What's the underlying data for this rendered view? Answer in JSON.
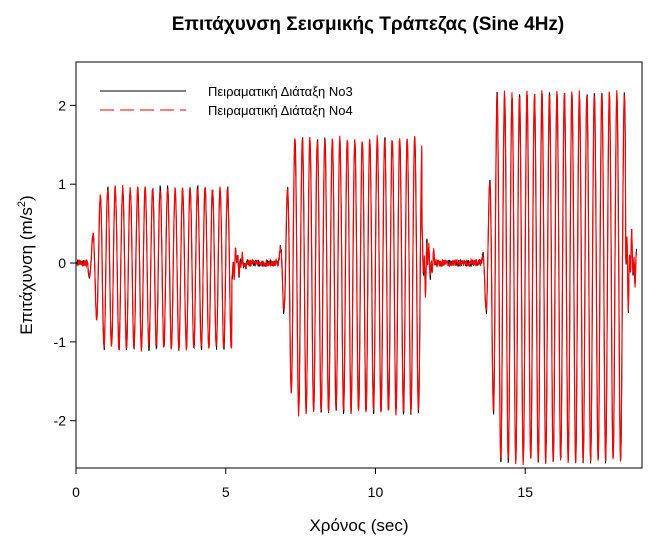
{
  "chart_data": {
    "type": "line",
    "title": "Επιτάχυνση Σεισμικής Τράπεζας (Sine 4Hz)",
    "xlabel": "Χρόνος (sec)",
    "ylabel_main": "Επιτάχυνση (m/s",
    "ylabel_sup": "2",
    "ylabel_tail": ")",
    "xlim": [
      0,
      18.9
    ],
    "ylim": [
      -2.6,
      2.55
    ],
    "xticks": [
      0,
      5,
      10,
      15
    ],
    "yticks": [
      -2,
      -1,
      0,
      1,
      2
    ],
    "grid": false,
    "legend_position": "top-left",
    "frequency_hz": 4,
    "segments": [
      {
        "start": 0.55,
        "end": 5.2,
        "amp_pos": 0.95,
        "amp_neg": 1.08
      },
      {
        "start": 6.95,
        "end": 11.55,
        "amp_pos": 1.58,
        "amp_neg": 1.9
      },
      {
        "start": 13.75,
        "end": 18.35,
        "amp_pos": 2.15,
        "amp_neg": 2.52
      }
    ],
    "series": [
      {
        "name": "Πειραματική Διάταξη No3",
        "color": "#000000",
        "dash": "solid"
      },
      {
        "name": "Πειραματική Διάταξη No4",
        "color": "#ff0000",
        "dash": "dashed"
      }
    ]
  }
}
